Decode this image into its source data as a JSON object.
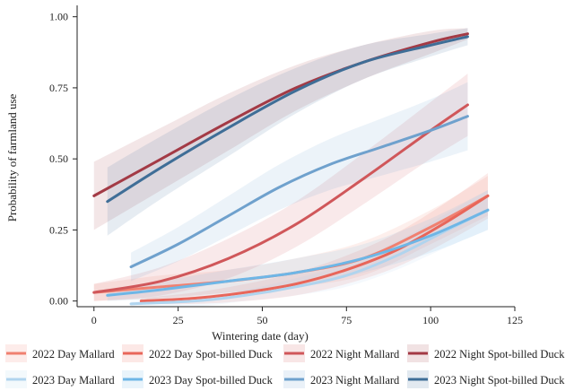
{
  "chart_data": {
    "type": "line",
    "title": "",
    "xlabel": "Wintering date (day)",
    "ylabel": "Probability of farmland use",
    "xlim": [
      -5,
      125
    ],
    "ylim": [
      -0.02,
      1.04
    ],
    "x_ticks": [
      0,
      25,
      50,
      75,
      100,
      125
    ],
    "y_ticks": [
      0.0,
      0.25,
      0.5,
      0.75,
      1.0
    ],
    "y_tick_labels": [
      "0.00",
      "0.25",
      "0.50",
      "0.75",
      "1.00"
    ],
    "grid": false,
    "legend_position": "bottom",
    "series": [
      {
        "name": "2022 Day Mallard",
        "color": "#f08070",
        "x": [
          0,
          20,
          40,
          60,
          80,
          100,
          117
        ],
        "y": [
          0.03,
          0.05,
          0.07,
          0.1,
          0.15,
          0.26,
          0.37
        ],
        "ci_half_width": [
          0.03,
          0.04,
          0.04,
          0.05,
          0.06,
          0.06,
          0.07
        ]
      },
      {
        "name": "2022 Day Spot-billed Duck",
        "color": "#e8665a",
        "x": [
          14,
          30,
          45,
          60,
          75,
          90,
          105,
          117
        ],
        "y": [
          0.0,
          0.01,
          0.03,
          0.06,
          0.11,
          0.18,
          0.28,
          0.37
        ],
        "ci_half_width": [
          0.01,
          0.02,
          0.03,
          0.04,
          0.05,
          0.06,
          0.07,
          0.08
        ]
      },
      {
        "name": "2022 Night Mallard",
        "color": "#d0575a",
        "x": [
          0,
          20,
          40,
          60,
          80,
          100,
          111
        ],
        "y": [
          0.03,
          0.07,
          0.15,
          0.27,
          0.43,
          0.6,
          0.69
        ],
        "ci_half_width": [
          0.03,
          0.05,
          0.07,
          0.08,
          0.09,
          0.1,
          0.11
        ]
      },
      {
        "name": "2022 Night Spot-billed Duck",
        "color": "#a33a45",
        "x": [
          0,
          20,
          40,
          60,
          80,
          100,
          111
        ],
        "y": [
          0.37,
          0.5,
          0.63,
          0.75,
          0.84,
          0.91,
          0.94
        ],
        "ci_half_width": [
          0.12,
          0.11,
          0.1,
          0.08,
          0.06,
          0.04,
          0.02
        ]
      },
      {
        "name": "2023 Day Mallard",
        "color": "#b0d4ee",
        "x": [
          11,
          30,
          45,
          60,
          75,
          90,
          105,
          117
        ],
        "y": [
          -0.01,
          0.0,
          0.02,
          0.05,
          0.09,
          0.16,
          0.25,
          0.32
        ],
        "ci_half_width": [
          0.01,
          0.02,
          0.02,
          0.03,
          0.04,
          0.05,
          0.06,
          0.07
        ]
      },
      {
        "name": "2023 Day Spot-billed Duck",
        "color": "#6eb6e6",
        "x": [
          4,
          20,
          40,
          60,
          80,
          100,
          117
        ],
        "y": [
          0.02,
          0.04,
          0.07,
          0.1,
          0.15,
          0.23,
          0.32
        ],
        "ci_half_width": [
          0.02,
          0.03,
          0.04,
          0.05,
          0.05,
          0.06,
          0.07
        ]
      },
      {
        "name": "2023 Night Mallard",
        "color": "#6fa1cd",
        "x": [
          11,
          25,
          40,
          55,
          70,
          85,
          100,
          111
        ],
        "y": [
          0.12,
          0.2,
          0.3,
          0.4,
          0.48,
          0.54,
          0.6,
          0.65
        ],
        "ci_half_width": [
          0.05,
          0.06,
          0.07,
          0.08,
          0.09,
          0.1,
          0.11,
          0.12
        ]
      },
      {
        "name": "2023 Night Spot-billed Duck",
        "color": "#3f6e97",
        "x": [
          4,
          20,
          40,
          60,
          80,
          100,
          111
        ],
        "y": [
          0.35,
          0.47,
          0.61,
          0.74,
          0.84,
          0.9,
          0.93
        ],
        "ci_half_width": [
          0.12,
          0.11,
          0.1,
          0.08,
          0.06,
          0.04,
          0.03
        ]
      }
    ]
  }
}
